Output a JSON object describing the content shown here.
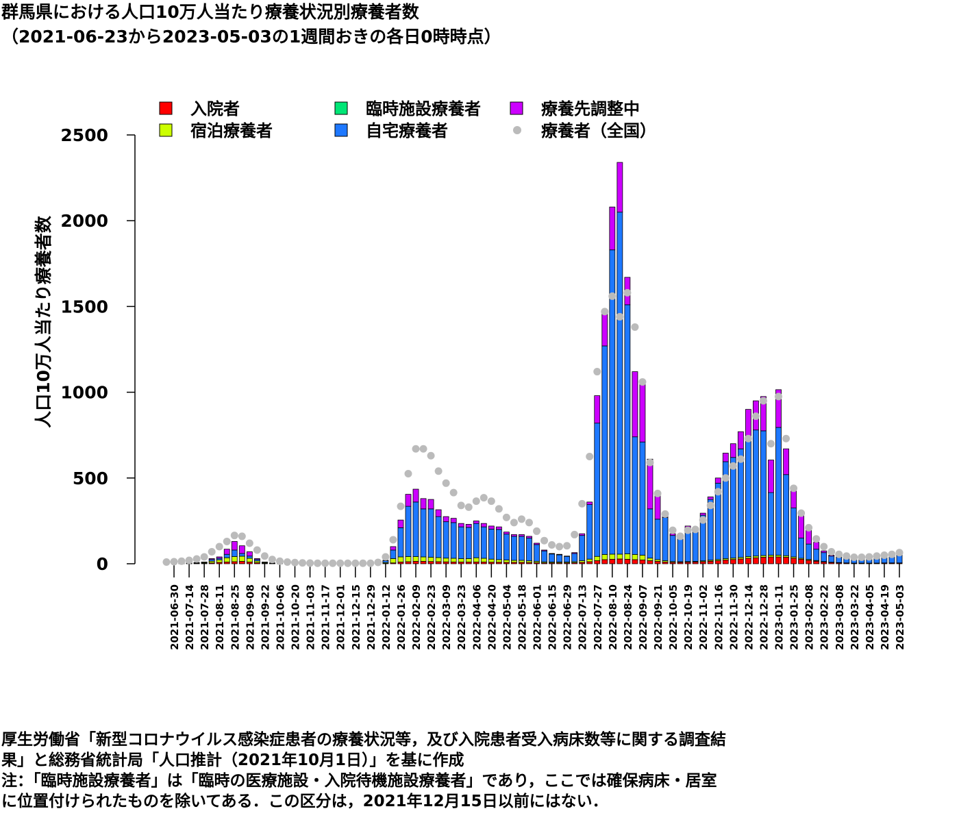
{
  "chart_data": {
    "type": "bar",
    "stacked": true,
    "title": "群馬県における人口10万人当たり療養状況別療養者数",
    "subtitle": "（2021-06-23から2023-05-03の1週間おきの各日0時時点）",
    "y_label": "人口10万人当たり療養者数",
    "notes": [
      "厚生労働省「新型コロナウイルス感染症患者の療養状況等，及び入院患者受入病床数等に関する調査結",
      "果」と総務省統計局「人口推計（2021年10月1日）」を基に作成",
      "注：「臨時施設療養者」は「臨時の医療施設・入院待機施設療養者」であり，ここでは確保病床・居室",
      "に位置付けられたものを除いてある．この区分は，2021年12月15日以前にはない．"
    ],
    "categories": [
      null,
      "2021-06-30",
      null,
      "2021-07-14",
      null,
      "2021-07-28",
      null,
      "2021-08-11",
      null,
      "2021-08-25",
      null,
      "2021-09-08",
      null,
      "2021-09-22",
      null,
      "2021-10-06",
      null,
      "2021-10-20",
      null,
      "2021-11-03",
      null,
      "2021-11-17",
      null,
      "2021-12-01",
      null,
      "2021-12-15",
      null,
      "2021-12-29",
      null,
      "2022-01-12",
      null,
      "2022-01-26",
      null,
      "2022-02-09",
      null,
      "2022-02-23",
      null,
      "2022-03-09",
      null,
      "2022-03-23",
      null,
      "2022-04-06",
      null,
      "2022-04-20",
      null,
      "2022-05-04",
      null,
      "2022-05-18",
      null,
      "2022-06-01",
      null,
      "2022-06-15",
      null,
      "2022-06-29",
      null,
      "2022-07-13",
      null,
      "2022-07-27",
      null,
      "2022-08-10",
      null,
      "2022-08-24",
      null,
      "2022-09-07",
      null,
      "2022-09-21",
      null,
      "2022-10-05",
      null,
      "2022-10-19",
      null,
      "2022-11-02",
      null,
      "2022-11-16",
      null,
      "2022-11-30",
      null,
      "2022-12-14",
      null,
      "2022-12-28",
      null,
      "2023-01-11",
      null,
      "2023-01-25",
      null,
      "2023-02-08",
      null,
      "2023-02-22",
      null,
      "2023-03-08",
      null,
      "2023-03-22",
      null,
      "2023-04-05",
      null,
      "2023-04-19",
      null,
      "2023-05-03"
    ],
    "series": [
      {
        "name": "入院者",
        "color": "#ff0000",
        "values": [
          1,
          1,
          1,
          2,
          2,
          3,
          5,
          8,
          10,
          12,
          14,
          10,
          6,
          3,
          2,
          1,
          1,
          1,
          1,
          1,
          0,
          0,
          0,
          0,
          0,
          0,
          0,
          0,
          1,
          2,
          5,
          10,
          12,
          14,
          14,
          13,
          12,
          11,
          10,
          10,
          10,
          10,
          10,
          9,
          9,
          8,
          8,
          8,
          7,
          6,
          5,
          5,
          5,
          5,
          6,
          8,
          12,
          18,
          24,
          26,
          28,
          26,
          24,
          22,
          18,
          14,
          10,
          8,
          8,
          9,
          10,
          12,
          15,
          18,
          22,
          25,
          28,
          32,
          35,
          38,
          40,
          40,
          38,
          32,
          26,
          20,
          15,
          10,
          7,
          5,
          4,
          3,
          3,
          3,
          3,
          4,
          4,
          4
        ]
      },
      {
        "name": "宿泊療養者",
        "color": "#ccff00",
        "values": [
          1,
          1,
          2,
          2,
          3,
          4,
          10,
          15,
          25,
          30,
          30,
          22,
          10,
          4,
          2,
          1,
          1,
          0,
          0,
          0,
          0,
          0,
          0,
          0,
          0,
          0,
          0,
          0,
          0,
          5,
          25,
          30,
          30,
          28,
          26,
          25,
          24,
          22,
          22,
          20,
          20,
          25,
          22,
          18,
          15,
          14,
          12,
          12,
          10,
          8,
          6,
          5,
          5,
          5,
          6,
          10,
          15,
          25,
          30,
          30,
          28,
          32,
          30,
          28,
          15,
          10,
          8,
          5,
          4,
          4,
          4,
          5,
          6,
          7,
          8,
          8,
          9,
          10,
          10,
          10,
          10,
          10,
          9,
          8,
          6,
          5,
          4,
          3,
          2,
          2,
          1,
          1,
          1,
          1,
          1,
          1,
          1,
          1
        ]
      },
      {
        "name": "臨時施設療養者",
        "color": "#00e676",
        "values": [
          0,
          0,
          0,
          0,
          0,
          0,
          0,
          0,
          0,
          0,
          0,
          0,
          0,
          0,
          0,
          0,
          0,
          0,
          0,
          0,
          0,
          0,
          0,
          0,
          0,
          0,
          0,
          0,
          0,
          0,
          0,
          0,
          0,
          0,
          0,
          0,
          0,
          0,
          0,
          0,
          0,
          0,
          0,
          0,
          0,
          0,
          0,
          0,
          0,
          0,
          0,
          0,
          0,
          0,
          0,
          0,
          0,
          0,
          0,
          0,
          0,
          0,
          0,
          0,
          0,
          0,
          0,
          0,
          0,
          0,
          0,
          0,
          0,
          0,
          0,
          0,
          0,
          0,
          0,
          0,
          0,
          0,
          0,
          0,
          0,
          0,
          0,
          0,
          0,
          0,
          0,
          0,
          0,
          0,
          0,
          0,
          0,
          0
        ]
      },
      {
        "name": "自宅療養者",
        "color": "#1e78ff",
        "values": [
          0,
          1,
          1,
          1,
          2,
          2,
          10,
          9,
          20,
          38,
          16,
          13,
          9,
          2,
          1,
          1,
          0,
          1,
          0,
          0,
          1,
          1,
          1,
          1,
          1,
          1,
          1,
          1,
          1,
          11,
          50,
          170,
          293,
          318,
          280,
          282,
          239,
          212,
          208,
          185,
          182,
          200,
          183,
          175,
          176,
          151,
          140,
          140,
          133,
          98,
          64,
          47,
          42,
          33,
          48,
          147,
          318,
          777,
          1216,
          1774,
          1994,
          1452,
          686,
          660,
          287,
          236,
          252,
          152,
          135,
          197,
          186,
          266,
          354,
          445,
          565,
          587,
          633,
          688,
          735,
          727,
          365,
          745,
          473,
          285,
          118,
          90,
          66,
          52,
          36,
          30,
          28,
          24,
          24,
          28,
          32,
          36,
          41,
          46
        ]
      },
      {
        "name": "療養先調整中",
        "color": "#cc00ff",
        "values": [
          0,
          0,
          0,
          0,
          0,
          1,
          5,
          8,
          30,
          50,
          45,
          25,
          5,
          1,
          0,
          0,
          0,
          0,
          0,
          0,
          0,
          0,
          0,
          0,
          0,
          0,
          0,
          0,
          0,
          2,
          20,
          45,
          70,
          75,
          60,
          55,
          40,
          30,
          25,
          20,
          18,
          15,
          20,
          18,
          15,
          12,
          10,
          10,
          10,
          8,
          5,
          3,
          3,
          2,
          5,
          10,
          15,
          160,
          200,
          250,
          290,
          160,
          380,
          340,
          290,
          140,
          20,
          10,
          8,
          10,
          10,
          12,
          15,
          30,
          50,
          80,
          100,
          170,
          170,
          200,
          190,
          220,
          150,
          110,
          130,
          80,
          40,
          10,
          5,
          3,
          2,
          2,
          2,
          3,
          4,
          4,
          4,
          4
        ]
      },
      {
        "name": "療養者（全国）",
        "color": "#bbbbbb",
        "kind": "point",
        "values": [
          10,
          12,
          15,
          20,
          28,
          40,
          70,
          100,
          130,
          165,
          160,
          120,
          80,
          45,
          25,
          15,
          10,
          7,
          5,
          4,
          3,
          3,
          3,
          3,
          3,
          3,
          3,
          3,
          8,
          40,
          140,
          335,
          525,
          670,
          670,
          630,
          540,
          470,
          415,
          340,
          330,
          365,
          385,
          365,
          320,
          270,
          240,
          260,
          240,
          190,
          135,
          110,
          100,
          105,
          170,
          350,
          625,
          1120,
          1470,
          1560,
          1440,
          1580,
          1380,
          1060,
          590,
          410,
          290,
          195,
          160,
          195,
          200,
          255,
          340,
          420,
          500,
          570,
          610,
          730,
          860,
          950,
          700,
          975,
          730,
          440,
          295,
          210,
          145,
          100,
          70,
          55,
          45,
          38,
          38,
          40,
          45,
          50,
          55,
          65
        ]
      }
    ],
    "ylim": [
      0,
      2500
    ],
    "yticks": [
      0,
      500,
      1000,
      1500,
      2000,
      2500
    ],
    "grid": false,
    "legend": "top"
  }
}
